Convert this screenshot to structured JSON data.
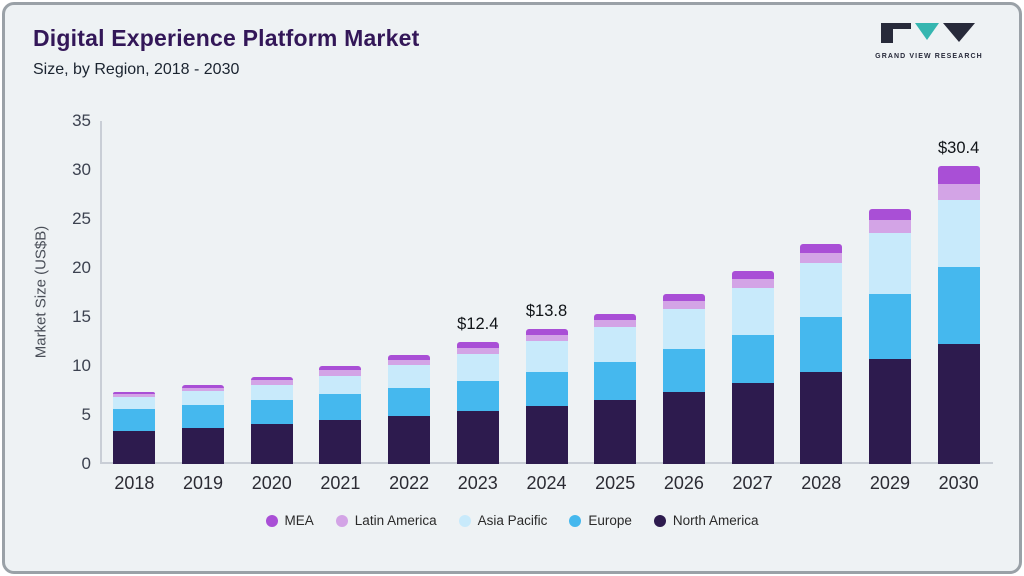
{
  "header": {
    "title": "Digital Experience Platform Market",
    "subtitle": "Size, by Region, 2018 - 2030"
  },
  "logo": {
    "text": "GRAND VIEW RESEARCH"
  },
  "chart_data": {
    "type": "bar",
    "stacked": true,
    "title": "Digital Experience Platform Market Size, by Region, 2018 - 2030",
    "ylabel": "Market Size (US$B)",
    "xlabel": "",
    "ylim": [
      0,
      35
    ],
    "yticks": [
      0,
      5,
      10,
      15,
      20,
      25,
      30,
      35
    ],
    "grid": false,
    "legend_position": "bottom",
    "categories": [
      "2018",
      "2019",
      "2020",
      "2021",
      "2022",
      "2023",
      "2024",
      "2025",
      "2026",
      "2027",
      "2028",
      "2029",
      "2030"
    ],
    "series": [
      {
        "name": "North America",
        "color": "#2d1b4e",
        "values": [
          3.4,
          3.7,
          4.1,
          4.5,
          4.9,
          5.4,
          5.9,
          6.5,
          7.3,
          8.3,
          9.4,
          10.7,
          12.2
        ]
      },
      {
        "name": "Europe",
        "color": "#45b8ee",
        "values": [
          2.2,
          2.3,
          2.4,
          2.6,
          2.9,
          3.1,
          3.5,
          3.9,
          4.4,
          4.9,
          5.6,
          6.6,
          7.9
        ]
      },
      {
        "name": "Asia Pacific",
        "color": "#c8eafb",
        "values": [
          1.2,
          1.4,
          1.6,
          1.9,
          2.3,
          2.7,
          3.1,
          3.6,
          4.1,
          4.8,
          5.5,
          6.3,
          6.8
        ]
      },
      {
        "name": "Latin America",
        "color": "#d3a4e6",
        "values": [
          0.3,
          0.35,
          0.45,
          0.55,
          0.55,
          0.6,
          0.65,
          0.7,
          0.8,
          0.9,
          1.0,
          1.3,
          1.7
        ]
      },
      {
        "name": "MEA",
        "color": "#a94fd6",
        "values": [
          0.25,
          0.3,
          0.35,
          0.45,
          0.45,
          0.6,
          0.65,
          0.6,
          0.7,
          0.8,
          0.9,
          1.1,
          1.8
        ]
      }
    ],
    "annotations": [
      {
        "category": "2023",
        "label": "$12.4"
      },
      {
        "category": "2024",
        "label": "$13.8"
      },
      {
        "category": "2030",
        "label": "$30.4"
      }
    ]
  }
}
